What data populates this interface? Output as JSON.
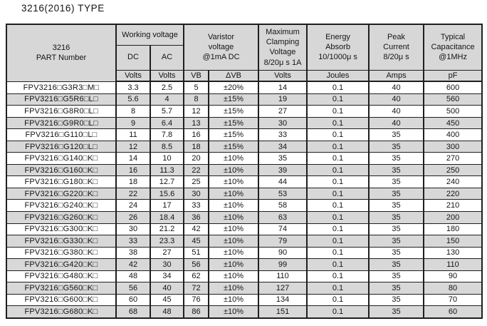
{
  "page": {
    "title": "3216(2016) TYPE"
  },
  "colors": {
    "header_bg": "#d7d7d7",
    "stripe_bg": "#d8d8d8",
    "border": "#1f1f1f",
    "text": "#141414"
  },
  "table": {
    "part_header": "3216\nPART Number",
    "groups": {
      "working_voltage": "Working voltage",
      "varistor_voltage": "Varistor\nvoltage\n@1mA DC",
      "max_clamping": "Maximum\nClamping\nVoltage\n8/20μ s 1A",
      "energy_absorb": "Energy\nAbsorb\n10/1000μ s",
      "peak_current": "Peak\nCurrent\n8/20μ s",
      "typical_capacitance": "Typical\nCapacitance\n@1MHz"
    },
    "subheaders": {
      "dc": "DC",
      "ac": "AC"
    },
    "units": [
      "Volts",
      "Volts",
      "VB",
      "ΔVB",
      "Volts",
      "Joules",
      "Amps",
      "pF"
    ],
    "rows": [
      {
        "part": "FPV3216□G3R3□M□",
        "values": [
          "3.3",
          "2.5",
          "5",
          "±20%",
          "14",
          "0.1",
          "40",
          "600"
        ]
      },
      {
        "part": "FPV3216□G5R6□L□",
        "values": [
          "5.6",
          "4",
          "8",
          "±15%",
          "19",
          "0.1",
          "40",
          "560"
        ]
      },
      {
        "part": "FPV3216□G8R0□L□",
        "values": [
          "8",
          "5.7",
          "12",
          "±15%",
          "27",
          "0.1",
          "40",
          "500"
        ]
      },
      {
        "part": "FPV3216□G9R0□L□",
        "values": [
          "9",
          "6.4",
          "13",
          "±15%",
          "30",
          "0.1",
          "40",
          "450"
        ]
      },
      {
        "part": "FPV3216□G110□L□",
        "values": [
          "11",
          "7.8",
          "16",
          "±15%",
          "33",
          "0.1",
          "35",
          "400"
        ]
      },
      {
        "part": "FPV3216□G120□L□",
        "values": [
          "12",
          "8.5",
          "18",
          "±15%",
          "34",
          "0.1",
          "35",
          "300"
        ]
      },
      {
        "part": "FPV3216□G140□K□",
        "values": [
          "14",
          "10",
          "20",
          "±10%",
          "35",
          "0.1",
          "35",
          "270"
        ]
      },
      {
        "part": "FPV3216□G160□K□",
        "values": [
          "16",
          "11.3",
          "22",
          "±10%",
          "39",
          "0.1",
          "35",
          "250"
        ]
      },
      {
        "part": "FPV3216□G180□K□",
        "values": [
          "18",
          "12.7",
          "25",
          "±10%",
          "44",
          "0.1",
          "35",
          "240"
        ]
      },
      {
        "part": "FPV3216□G220□K□",
        "values": [
          "22",
          "15.6",
          "30",
          "±10%",
          "53",
          "0.1",
          "35",
          "220"
        ]
      },
      {
        "part": "FPV3216□G240□K□",
        "values": [
          "24",
          "17",
          "33",
          "±10%",
          "58",
          "0.1",
          "35",
          "210"
        ]
      },
      {
        "part": "FPV3216□G260□K□",
        "values": [
          "26",
          "18.4",
          "36",
          "±10%",
          "63",
          "0.1",
          "35",
          "200"
        ]
      },
      {
        "part": "FPV3216□G300□K□",
        "values": [
          "30",
          "21.2",
          "42",
          "±10%",
          "74",
          "0.1",
          "35",
          "180"
        ]
      },
      {
        "part": "FPV3216□G330□K□",
        "values": [
          "33",
          "23.3",
          "45",
          "±10%",
          "79",
          "0.1",
          "35",
          "150"
        ]
      },
      {
        "part": "FPV3216□G380□K□",
        "values": [
          "38",
          "27",
          "51",
          "±10%",
          "90",
          "0.1",
          "35",
          "130"
        ]
      },
      {
        "part": "FPV3216□G420□K□",
        "values": [
          "42",
          "30",
          "56",
          "±10%",
          "99",
          "0.1",
          "35",
          "110"
        ]
      },
      {
        "part": "FPV3216□G480□K□",
        "values": [
          "48",
          "34",
          "62",
          "±10%",
          "110",
          "0.1",
          "35",
          "90"
        ]
      },
      {
        "part": "FPV3216□G560□K□",
        "values": [
          "56",
          "40",
          "72",
          "±10%",
          "127",
          "0.1",
          "35",
          "80"
        ]
      },
      {
        "part": "FPV3216□G600□K□",
        "values": [
          "60",
          "45",
          "76",
          "±10%",
          "134",
          "0.1",
          "35",
          "70"
        ]
      },
      {
        "part": "FPV3216□G680□K□",
        "values": [
          "68",
          "48",
          "86",
          "±10%",
          "151",
          "0.1",
          "35",
          "60"
        ]
      }
    ]
  }
}
